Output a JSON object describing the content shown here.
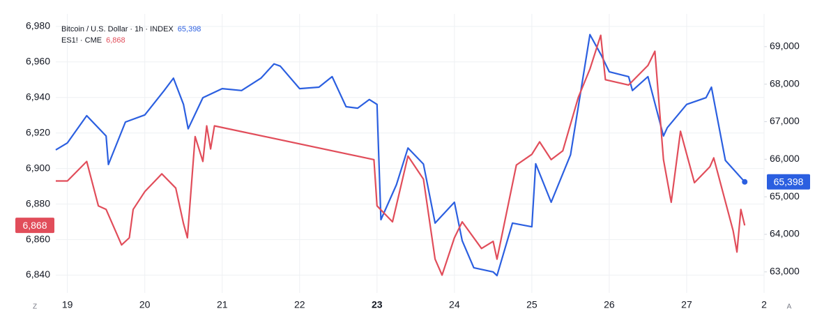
{
  "chart_data": {
    "type": "line",
    "series": [
      {
        "name": "Bitcoin / U.S. Dollar · 1h · INDEX",
        "color": "#2b5fe0",
        "axis": "y2",
        "last_label": "65,398",
        "x": [
          18.85,
          19.0,
          19.25,
          19.5,
          19.53,
          19.75,
          20.0,
          20.25,
          20.37,
          20.5,
          20.56,
          20.75,
          21.0,
          21.25,
          21.5,
          21.67,
          21.75,
          22.0,
          22.25,
          22.42,
          22.6,
          22.75,
          22.9,
          23.0,
          23.05,
          23.25,
          23.4,
          23.6,
          23.75,
          24.0,
          24.1,
          24.25,
          24.5,
          24.55,
          24.75,
          25.0,
          25.05,
          25.25,
          25.5,
          25.75,
          25.9,
          26.0,
          26.25,
          26.3,
          26.5,
          26.7,
          26.75,
          27.0,
          27.25,
          27.32,
          27.5,
          27.75
        ],
        "values": [
          66250,
          66435,
          67160,
          66620,
          65860,
          66990,
          67180,
          67830,
          68160,
          67460,
          66810,
          67640,
          67880,
          67830,
          68160,
          68540,
          68480,
          67880,
          67920,
          68200,
          67400,
          67360,
          67590,
          67460,
          64390,
          65320,
          66300,
          65870,
          64300,
          64855,
          63830,
          63110,
          63000,
          62900,
          64300,
          64200,
          65880,
          64855,
          66120,
          69320,
          68760,
          68330,
          68200,
          67830,
          68200,
          66620,
          66840,
          67460,
          67640,
          67920,
          65970,
          65398
        ]
      },
      {
        "name": "ES1! · CME",
        "color": "#e14d5a",
        "last_label": "6,868",
        "x": [
          18.85,
          19.0,
          19.25,
          19.4,
          19.5,
          19.7,
          19.8,
          19.85,
          20.0,
          20.22,
          20.4,
          20.5,
          20.55,
          20.65,
          20.75,
          20.8,
          20.85,
          20.9,
          22.96,
          23.0,
          23.2,
          23.4,
          23.6,
          23.75,
          23.84,
          24.0,
          24.1,
          24.35,
          24.5,
          24.55,
          24.8,
          25.0,
          25.1,
          25.25,
          25.4,
          25.6,
          25.75,
          25.89,
          25.95,
          26.25,
          26.5,
          26.59,
          26.7,
          26.8,
          26.92,
          27.1,
          27.3,
          27.35,
          27.6,
          27.65,
          27.7,
          27.75
        ],
        "values": [
          6893,
          6893,
          6904,
          6879,
          6877,
          6857,
          6861,
          6877,
          6887,
          6897,
          6889,
          6869,
          6861,
          6918,
          6904,
          6924,
          6911,
          6924,
          6905,
          6879,
          6870,
          6907,
          6894,
          6849,
          6840,
          6861,
          6870,
          6855,
          6859,
          6849,
          6902,
          6908,
          6915,
          6905,
          6910,
          6940,
          6956,
          6975,
          6950,
          6947,
          6958,
          6966,
          6905,
          6881,
          6921,
          6892,
          6901,
          6906,
          6865,
          6853,
          6877,
          6868
        ]
      }
    ],
    "xlim": [
      18.85,
      28
    ],
    "xticks": [
      19,
      20,
      21,
      22,
      23,
      24,
      25,
      26,
      27,
      {
        "value": 28,
        "label": "2"
      }
    ],
    "ylim": [
      6830,
      6987
    ],
    "yticks": [
      {
        "value": 6840,
        "label": "6,840"
      },
      {
        "value": 6860,
        "label": "6,860"
      },
      {
        "value": 6880,
        "label": "6,880"
      },
      {
        "value": 6900,
        "label": "6,900"
      },
      {
        "value": 6920,
        "label": "6,920"
      },
      {
        "value": 6940,
        "label": "6,940"
      },
      {
        "value": 6960,
        "label": "6,960"
      },
      {
        "value": 6980,
        "label": "6,980"
      }
    ],
    "y2lim": [
      62440,
      69870
    ],
    "y2ticks": [
      {
        "value": 63000,
        "label": "63,000"
      },
      {
        "value": 64000,
        "label": "64,000"
      },
      {
        "value": 65000,
        "label": "65,000"
      },
      {
        "value": 66000,
        "label": "66,000"
      },
      {
        "value": 67000,
        "label": "67,000"
      },
      {
        "value": 68000,
        "label": "68,000"
      },
      {
        "value": 69000,
        "label": "69,000"
      }
    ],
    "grid": true
  },
  "controls": [
    "Z",
    "A"
  ]
}
